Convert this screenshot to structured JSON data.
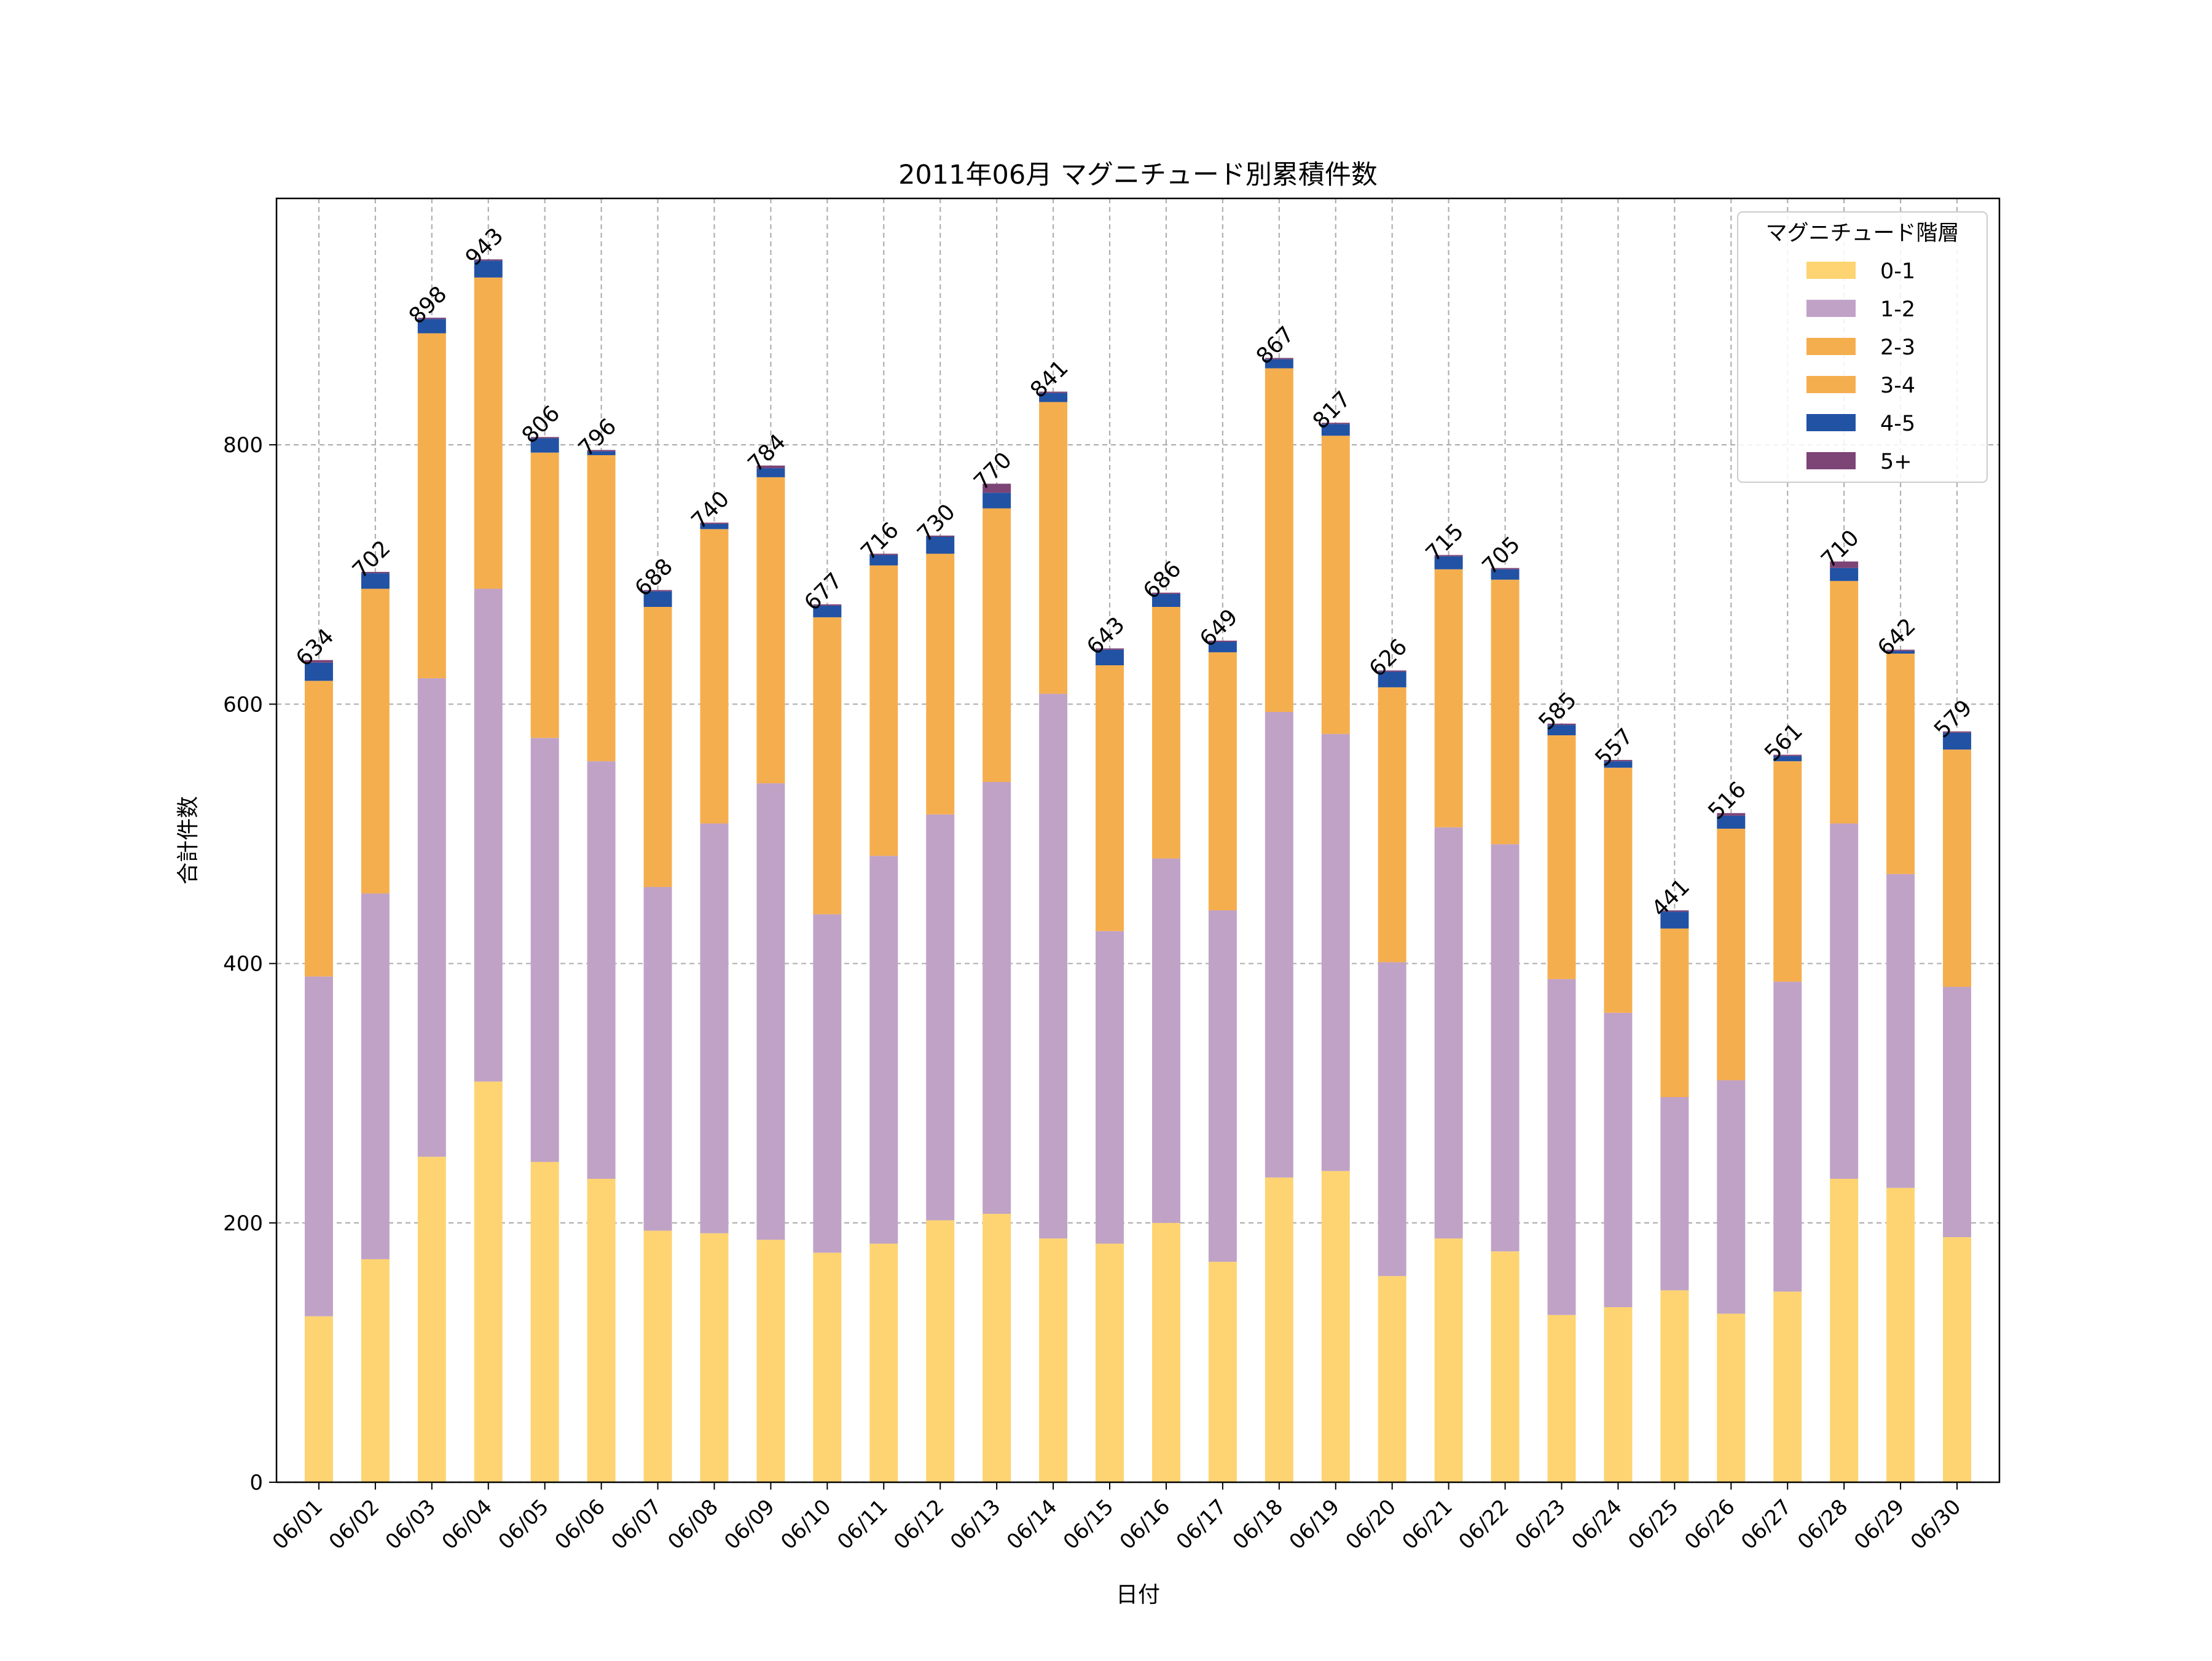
{
  "chart_data": {
    "type": "bar",
    "stacked": true,
    "title": "2011年06月 マグニチュード別累積件数",
    "xlabel": "日付",
    "ylabel": "合計件数",
    "ylim": [
      0,
      990
    ],
    "yticks": [
      0,
      200,
      400,
      600,
      800
    ],
    "grid": true,
    "legend_title": "マグニチュード階層",
    "legend_position": "top-right",
    "categories": [
      "06/01",
      "06/02",
      "06/03",
      "06/04",
      "06/05",
      "06/06",
      "06/07",
      "06/08",
      "06/09",
      "06/10",
      "06/11",
      "06/12",
      "06/13",
      "06/14",
      "06/15",
      "06/16",
      "06/17",
      "06/18",
      "06/19",
      "06/20",
      "06/21",
      "06/22",
      "06/23",
      "06/24",
      "06/25",
      "06/26",
      "06/27",
      "06/28",
      "06/29",
      "06/30"
    ],
    "series": [
      {
        "name": "0-1",
        "color": "#FDD471",
        "values": [
          128,
          172,
          251,
          309,
          247,
          234,
          194,
          192,
          187,
          177,
          184,
          202,
          207,
          188,
          184,
          200,
          170,
          235,
          240,
          159,
          188,
          178,
          129,
          135,
          148,
          130,
          147,
          234,
          227,
          189
        ]
      },
      {
        "name": "1-2",
        "color": "#C0A2C7",
        "values": [
          262,
          282,
          369,
          380,
          327,
          322,
          265,
          316,
          352,
          261,
          299,
          313,
          333,
          420,
          241,
          281,
          271,
          359,
          337,
          242,
          317,
          314,
          259,
          227,
          149,
          180,
          239,
          274,
          242,
          193
        ]
      },
      {
        "name": "2-3",
        "color": "#F5AE4E",
        "values": [
          228,
          235,
          266,
          240,
          220,
          236,
          216,
          227,
          236,
          229,
          224,
          201,
          211,
          225,
          205,
          194,
          199,
          265,
          230,
          212,
          199,
          204,
          188,
          189,
          130,
          194,
          170,
          187,
          170,
          183
        ]
      },
      {
        "name": "3-4",
        "color": "#F5AE4E",
        "values": [
          0,
          0,
          0,
          0,
          0,
          0,
          0,
          0,
          0,
          0,
          0,
          0,
          0,
          0,
          0,
          0,
          0,
          0,
          0,
          0,
          0,
          0,
          0,
          0,
          0,
          0,
          0,
          0,
          0,
          0
        ]
      },
      {
        "name": "4-5",
        "color": "#2152A4",
        "values": [
          14,
          12,
          11,
          13,
          11,
          3,
          12,
          4,
          7,
          9,
          8,
          13,
          12,
          7,
          12,
          10,
          8,
          7,
          9,
          12,
          10,
          8,
          8,
          5,
          13,
          10,
          4,
          10,
          2,
          13
        ]
      },
      {
        "name": "5+",
        "color": "#7D4476",
        "values": [
          2,
          1,
          1,
          1,
          1,
          1,
          1,
          1,
          2,
          1,
          1,
          1,
          7,
          1,
          1,
          1,
          1,
          1,
          1,
          1,
          1,
          1,
          1,
          1,
          1,
          2,
          1,
          5,
          1,
          1
        ]
      }
    ],
    "totals": [
      634,
      702,
      898,
      943,
      806,
      796,
      688,
      740,
      784,
      677,
      716,
      730,
      770,
      841,
      643,
      686,
      649,
      867,
      817,
      626,
      715,
      705,
      585,
      557,
      441,
      516,
      561,
      710,
      642,
      579
    ]
  }
}
